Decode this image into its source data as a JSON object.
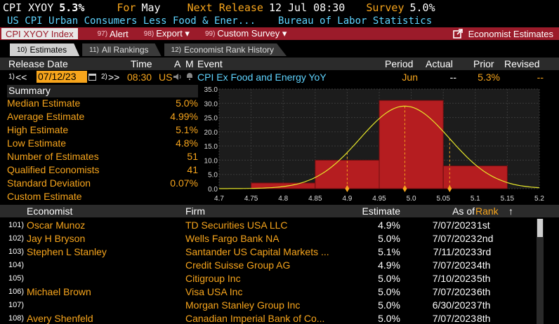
{
  "header": {
    "ticker": "CPI XYOY",
    "value": "5.3%",
    "for_label": "For",
    "for_value": "May",
    "next_release_label": "Next Release",
    "next_release_value": "12 Jul 08:30",
    "survey_label": "Survey",
    "survey_value": "5.0%",
    "description": "US CPI Urban Consumers Less Food & Ener...",
    "source": "Bureau of Labor Statistics"
  },
  "toolbar": {
    "index_label": "CPI XYOY Index",
    "alert_num": "97)",
    "alert_label": "Alert",
    "export_num": "98)",
    "export_label": "Export ▾",
    "survey_num": "99)",
    "survey_label": "Custom Survey ▾",
    "economist_label": "Economist Estimates"
  },
  "tabs": [
    {
      "num": "10)",
      "label": "Estimates"
    },
    {
      "num": "11)",
      "label": "All Rankings"
    },
    {
      "num": "12)",
      "label": "Economist Rank History"
    }
  ],
  "release": {
    "headers": {
      "date": "Release Date",
      "time": "Time",
      "a": "A",
      "m": "M",
      "event": "Event",
      "period": "Period",
      "actual": "Actual",
      "prior": "Prior",
      "revised": "Revised"
    },
    "prev_num": "1)",
    "prev": "<<",
    "date_value": "07/12/23",
    "next_num": "2)",
    "next": ">>",
    "time": "08:30",
    "country": "US",
    "event": "CPI Ex Food and Energy YoY",
    "period": "Jun",
    "actual": "--",
    "prior": "5.3%",
    "revised": "--"
  },
  "summary": {
    "title": "Summary",
    "rows": [
      {
        "label": "Median Estimate",
        "value": "5.0%"
      },
      {
        "label": "Average Estimate",
        "value": "4.99%"
      },
      {
        "label": "High Estimate",
        "value": "5.1%"
      },
      {
        "label": "Low Estimate",
        "value": "4.8%"
      },
      {
        "label": "Number of Estimates",
        "value": "51"
      },
      {
        "label": "Qualified Economists",
        "value": "41"
      },
      {
        "label": "Standard Deviation",
        "value": "0.07%"
      },
      {
        "label": "Custom Estimate",
        "value": ""
      }
    ]
  },
  "chart_data": {
    "type": "bar",
    "bins": [
      {
        "from": 4.75,
        "to": 4.85,
        "value": 2
      },
      {
        "from": 4.85,
        "to": 4.95,
        "value": 10
      },
      {
        "from": 4.95,
        "to": 5.05,
        "value": 31
      },
      {
        "from": 5.05,
        "to": 5.15,
        "value": 8
      }
    ],
    "x_ticks": [
      "4.7",
      "4.75",
      "4.8",
      "4.85",
      "4.9",
      "4.95",
      "5.0",
      "5.05",
      "5.1",
      "5.15",
      "5.2"
    ],
    "y_ticks": [
      "0.0",
      "5.0",
      "10.0",
      "15.0",
      "20.0",
      "25.0",
      "30.0",
      "35.0"
    ],
    "xlim": [
      4.7,
      5.2
    ],
    "ylim": [
      0,
      35
    ],
    "normal_curve": {
      "mean": 4.99,
      "sd": 0.07
    },
    "markers": [
      4.9,
      4.99,
      5.06
    ],
    "colors": {
      "bar": "#b51d20",
      "curve": "#e6e62a",
      "marker": "#f7a51c"
    }
  },
  "table": {
    "headers": {
      "economist": "Economist",
      "firm": "Firm",
      "estimate": "Estimate",
      "asof": "As of",
      "rank": "Rank",
      "sort": "↑"
    },
    "rows": [
      {
        "idx": "101)",
        "economist": "Oscar Munoz",
        "firm": "TD Securities USA LLC",
        "estimate": "4.9%",
        "asof": "7/07/2023",
        "rank": "1st"
      },
      {
        "idx": "102)",
        "economist": "Jay H Bryson",
        "firm": "Wells Fargo Bank NA",
        "estimate": "5.0%",
        "asof": "7/07/2023",
        "rank": "2nd"
      },
      {
        "idx": "103)",
        "economist": "Stephen L Stanley",
        "firm": "Santander US Capital Markets ...",
        "estimate": "5.1%",
        "asof": "7/11/2023",
        "rank": "3rd"
      },
      {
        "idx": "104)",
        "economist": "",
        "firm": "Credit Suisse Group AG",
        "estimate": "4.9%",
        "asof": "7/07/2023",
        "rank": "4th"
      },
      {
        "idx": "105)",
        "economist": "",
        "firm": "Citigroup Inc",
        "estimate": "5.0%",
        "asof": "7/10/2023",
        "rank": "5th"
      },
      {
        "idx": "106)",
        "economist": "Michael Brown",
        "firm": "Visa USA Inc",
        "estimate": "5.0%",
        "asof": "7/07/2023",
        "rank": "6th"
      },
      {
        "idx": "107)",
        "economist": "",
        "firm": "Morgan Stanley Group Inc",
        "estimate": "5.0%",
        "asof": "6/30/2023",
        "rank": "7th"
      },
      {
        "idx": "108)",
        "economist": "Avery Shenfeld",
        "firm": "Canadian Imperial Bank of Co...",
        "estimate": "5.0%",
        "asof": "7/07/2023",
        "rank": "8th"
      }
    ]
  }
}
